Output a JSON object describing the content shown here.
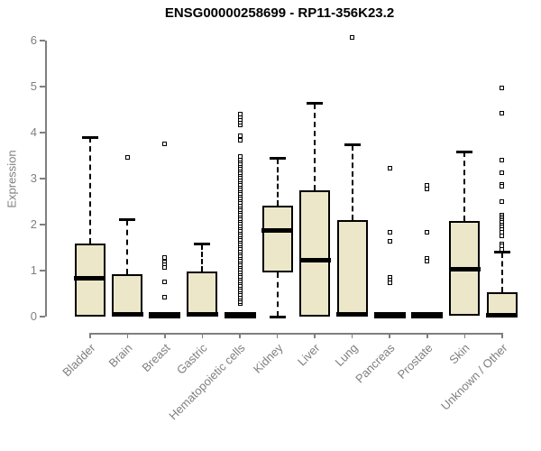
{
  "chart_data": {
    "type": "boxplot",
    "title": "ENSG00000258699 - RP11-356K23.2",
    "ylabel": "Expression",
    "xlabel": "",
    "ylim": [
      0,
      6.2
    ],
    "yticks": [
      0,
      1,
      2,
      3,
      4,
      5,
      6
    ],
    "grid": false,
    "legend": null,
    "colors": {
      "box_fill": "#ECE7C8",
      "box_border": "#000000",
      "median": "#000000",
      "whisker": "#000000",
      "outlier": "#000000",
      "axis": "#7F7F7F",
      "title": "#000000",
      "background": "#FFFFFF"
    },
    "groups": [
      {
        "name": "Bladder",
        "q1": 0.0,
        "median": 0.83,
        "q3": 1.58,
        "whisker_low": null,
        "whisker_high": 3.9,
        "collapsed": false,
        "outliers": []
      },
      {
        "name": "Brain",
        "q1": 0.0,
        "median": 0.04,
        "q3": 0.93,
        "whisker_low": null,
        "whisker_high": 2.1,
        "collapsed": false,
        "outliers": [
          3.46
        ]
      },
      {
        "name": "Breast",
        "q1": 0.0,
        "median": 0.03,
        "q3": 0.0,
        "whisker_low": null,
        "whisker_high": null,
        "collapsed": true,
        "outliers": [
          3.76,
          1.28,
          1.18,
          1.12,
          1.06,
          0.76,
          0.43
        ]
      },
      {
        "name": "Gastric",
        "q1": 0.0,
        "median": 0.04,
        "q3": 0.99,
        "whisker_low": null,
        "whisker_high": 1.57,
        "collapsed": false,
        "outliers": []
      },
      {
        "name": "Hematopoietic cells",
        "q1": 0.0,
        "median": 0.03,
        "q3": 0.0,
        "whisker_low": null,
        "whisker_high": null,
        "collapsed": true,
        "outliers": [
          0.28,
          0.33,
          0.38,
          0.43,
          0.48,
          0.53,
          0.58,
          0.63,
          0.68,
          0.73,
          0.78,
          0.83,
          0.88,
          0.93,
          0.98,
          1.03,
          1.08,
          1.13,
          1.18,
          1.23,
          1.28,
          1.33,
          1.38,
          1.43,
          1.48,
          1.53,
          1.58,
          1.63,
          1.68,
          1.73,
          1.78,
          1.83,
          1.88,
          1.93,
          1.98,
          2.03,
          2.08,
          2.13,
          2.18,
          2.23,
          2.28,
          2.33,
          2.38,
          2.43,
          2.48,
          2.53,
          2.58,
          2.63,
          2.68,
          2.73,
          2.78,
          2.83,
          2.88,
          2.93,
          2.98,
          3.03,
          3.08,
          3.13,
          3.18,
          3.23,
          3.28,
          3.33,
          3.38,
          3.43,
          3.48,
          3.83,
          3.93,
          4.16,
          4.22,
          4.28,
          4.34,
          4.4
        ]
      },
      {
        "name": "Kidney",
        "q1": 0.96,
        "median": 1.87,
        "q3": 2.41,
        "whisker_low": 0.0,
        "whisker_high": 3.44,
        "collapsed": false,
        "outliers": []
      },
      {
        "name": "Liver",
        "q1": 0.0,
        "median": 1.22,
        "q3": 2.75,
        "whisker_low": null,
        "whisker_high": 4.63,
        "collapsed": false,
        "outliers": []
      },
      {
        "name": "Lung",
        "q1": 0.0,
        "median": 0.05,
        "q3": 2.1,
        "whisker_low": null,
        "whisker_high": 3.73,
        "collapsed": false,
        "outliers": [
          6.07
        ]
      },
      {
        "name": "Pancreas",
        "q1": 0.0,
        "median": 0.03,
        "q3": 0.0,
        "whisker_low": null,
        "whisker_high": null,
        "collapsed": true,
        "outliers": [
          3.23,
          1.84,
          1.63,
          0.86,
          0.8,
          0.73
        ]
      },
      {
        "name": "Prostate",
        "q1": 0.0,
        "median": 0.03,
        "q3": 0.0,
        "whisker_low": null,
        "whisker_high": null,
        "collapsed": true,
        "outliers": [
          2.85,
          2.77,
          1.84,
          1.27,
          1.2
        ]
      },
      {
        "name": "Skin",
        "q1": 0.02,
        "median": 1.02,
        "q3": 2.08,
        "whisker_low": null,
        "whisker_high": 3.58,
        "collapsed": false,
        "outliers": []
      },
      {
        "name": "Unknown / Other",
        "q1": 0.0,
        "median": 0.03,
        "q3": 0.53,
        "whisker_low": null,
        "whisker_high": 1.4,
        "collapsed": false,
        "outliers": [
          4.97,
          4.43,
          3.4,
          3.13,
          2.88,
          2.83,
          2.5,
          2.2,
          2.16,
          2.12,
          2.08,
          2.04,
          2.0,
          1.96,
          1.9,
          1.84,
          1.76,
          1.58,
          1.54,
          1.46
        ]
      }
    ]
  }
}
